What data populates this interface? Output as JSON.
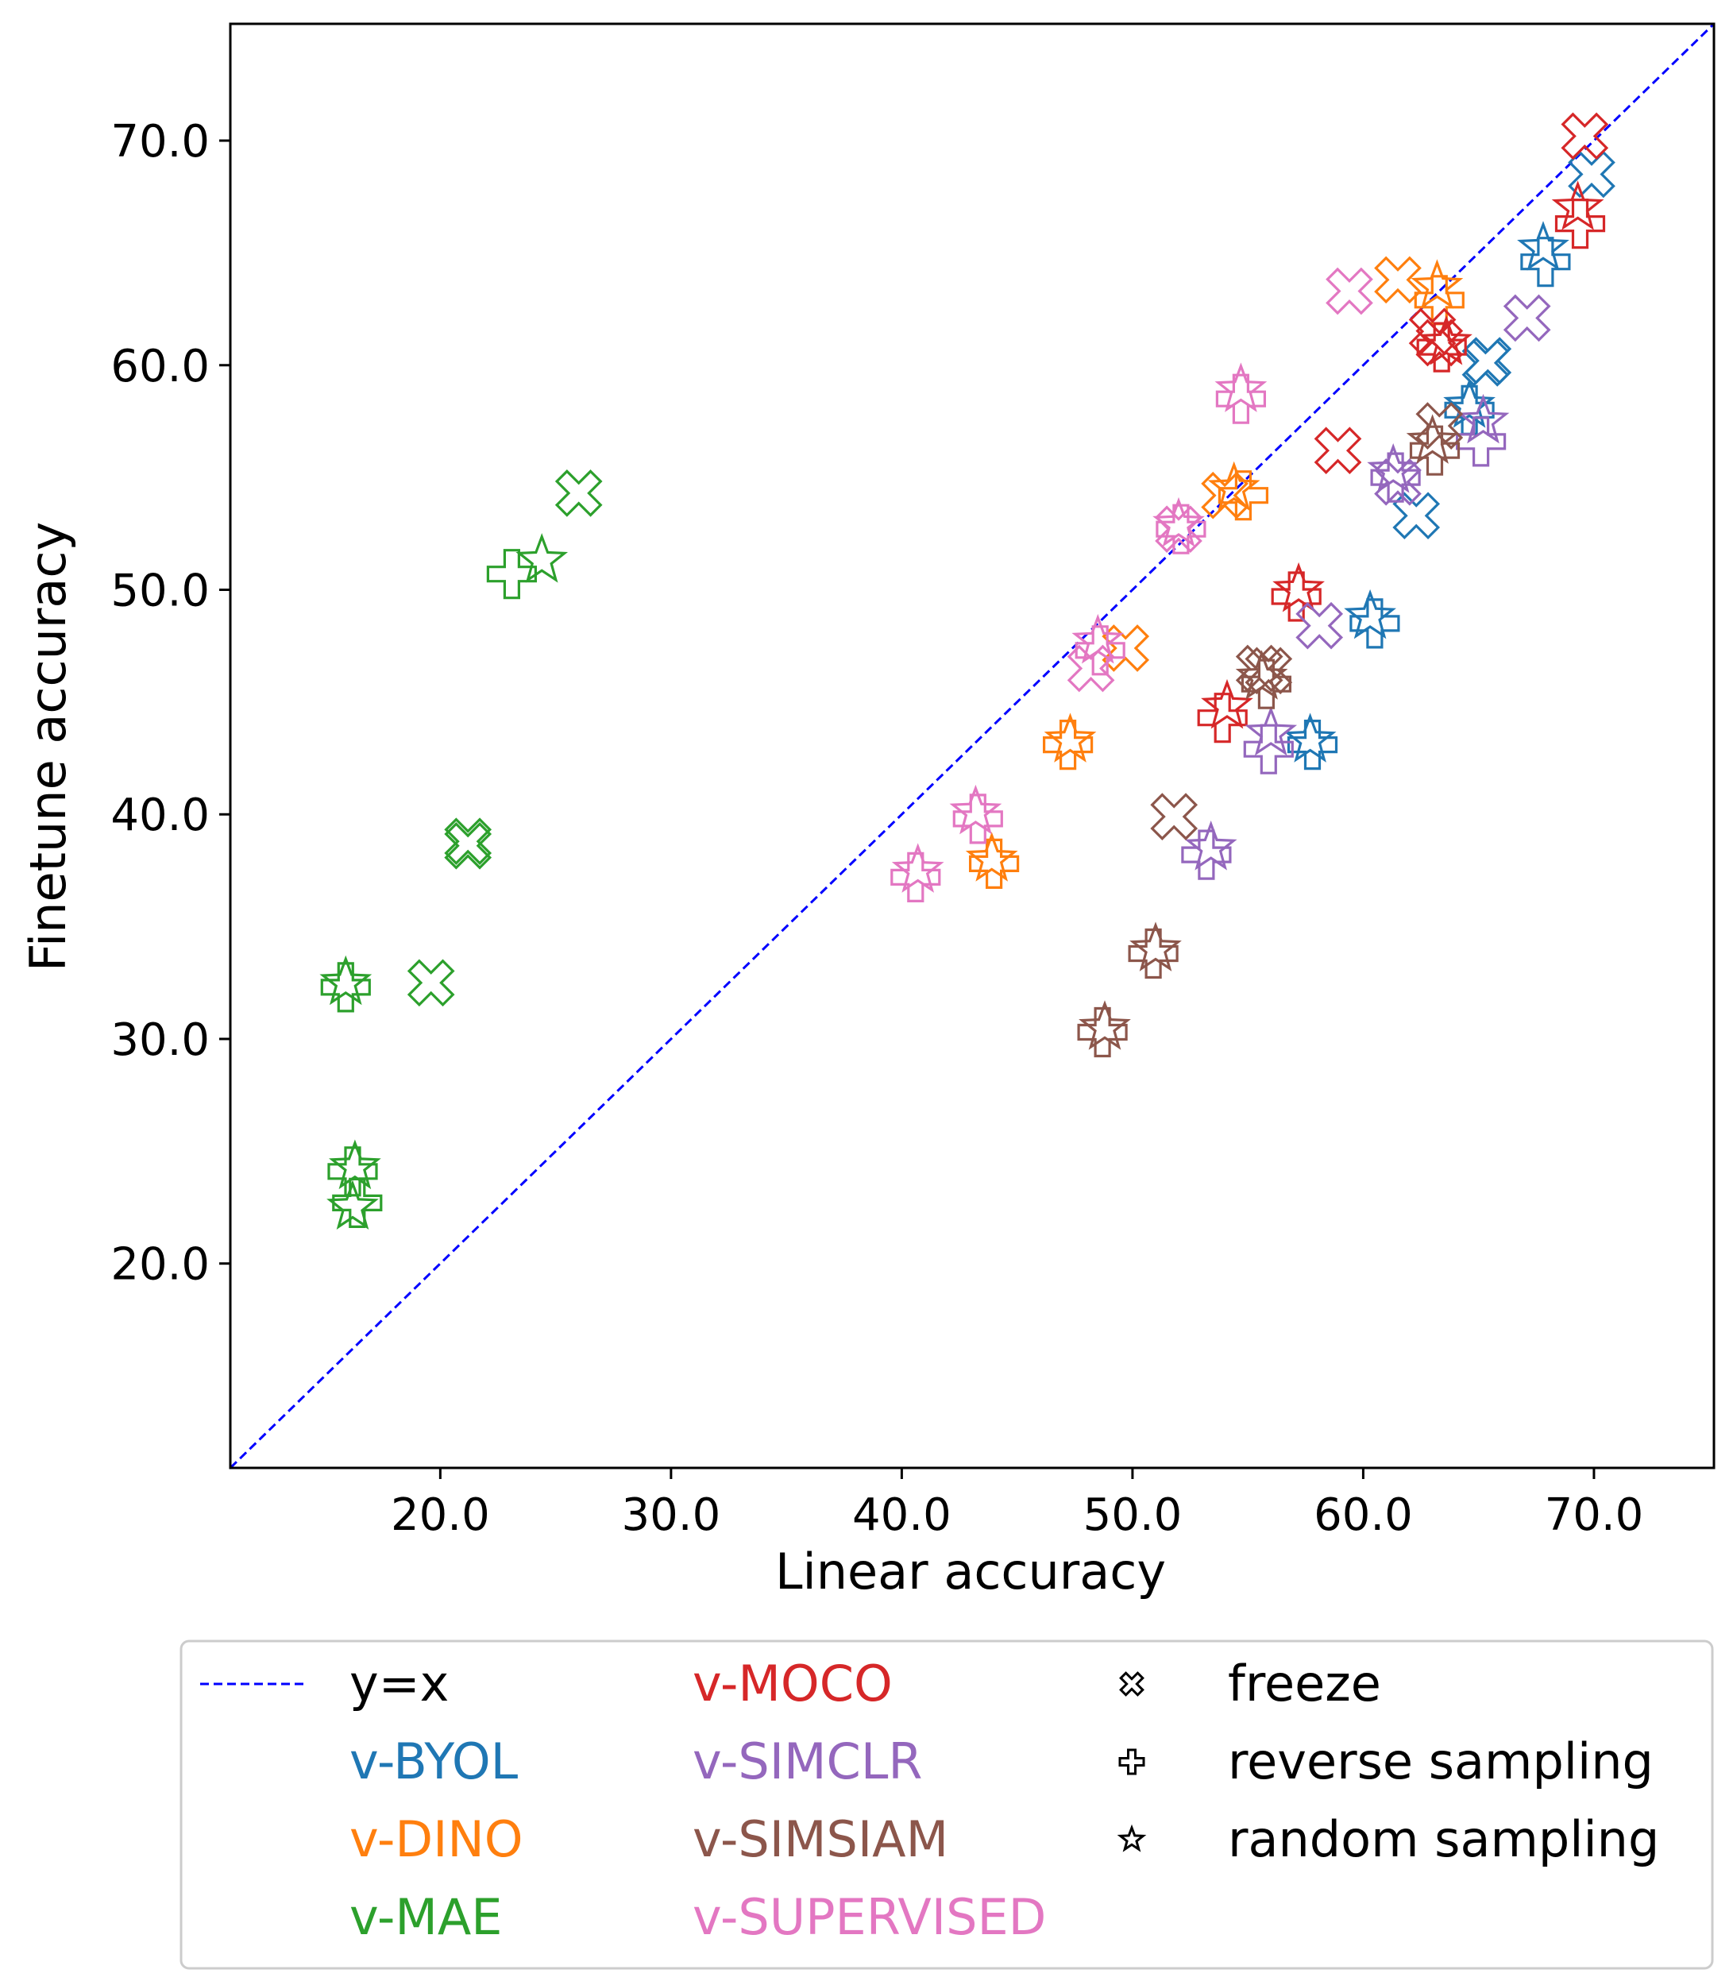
{
  "chart_data": {
    "type": "scatter",
    "title": "",
    "xlabel": "Linear accuracy",
    "ylabel": "Finetune accuracy",
    "xlim": [
      10.9,
      75.2
    ],
    "ylim": [
      10.9,
      75.2
    ],
    "xticks": [
      "20.0",
      "30.0",
      "40.0",
      "50.0",
      "60.0",
      "70.0"
    ],
    "yticks": [
      "20.0",
      "30.0",
      "40.0",
      "50.0",
      "60.0",
      "70.0"
    ],
    "xtick_values": [
      20,
      30,
      40,
      50,
      60,
      70
    ],
    "ytick_values": [
      20,
      30,
      40,
      50,
      60,
      70
    ],
    "grid": false,
    "legend_position": "bottom",
    "reference_line": {
      "label": "y=x",
      "color": "#0000ff",
      "style": "dashed"
    },
    "markers": [
      {
        "key": "freeze",
        "label": "freeze",
        "shape": "x"
      },
      {
        "key": "reverse",
        "label": "reverse sampling",
        "shape": "plus"
      },
      {
        "key": "random",
        "label": "random sampling",
        "shape": "star"
      }
    ],
    "series": [
      {
        "name": "v-BYOL",
        "color": "#1f77b4",
        "points": [
          {
            "x": 69.9,
            "y": 68.5,
            "m": "freeze"
          },
          {
            "x": 65.4,
            "y": 60.2,
            "m": "freeze"
          },
          {
            "x": 65.3,
            "y": 60.1,
            "m": "freeze"
          },
          {
            "x": 62.3,
            "y": 53.3,
            "m": "freeze"
          },
          {
            "x": 67.9,
            "y": 64.6,
            "m": "reverse"
          },
          {
            "x": 64.6,
            "y": 58.0,
            "m": "reverse"
          },
          {
            "x": 60.5,
            "y": 48.5,
            "m": "reverse"
          },
          {
            "x": 57.8,
            "y": 43.1,
            "m": "reverse"
          },
          {
            "x": 67.8,
            "y": 65.2,
            "m": "random"
          },
          {
            "x": 64.6,
            "y": 58.2,
            "m": "random"
          },
          {
            "x": 60.3,
            "y": 48.8,
            "m": "random"
          },
          {
            "x": 57.7,
            "y": 43.3,
            "m": "random"
          }
        ]
      },
      {
        "name": "v-DINO",
        "color": "#ff7f0e",
        "points": [
          {
            "x": 61.5,
            "y": 63.8,
            "m": "freeze"
          },
          {
            "x": 54.0,
            "y": 54.2,
            "m": "freeze"
          },
          {
            "x": 49.7,
            "y": 47.4,
            "m": "freeze"
          },
          {
            "x": 63.3,
            "y": 62.9,
            "m": "reverse"
          },
          {
            "x": 54.8,
            "y": 54.2,
            "m": "reverse"
          },
          {
            "x": 47.2,
            "y": 43.1,
            "m": "reverse"
          },
          {
            "x": 44.0,
            "y": 37.8,
            "m": "reverse"
          },
          {
            "x": 63.2,
            "y": 63.5,
            "m": "random"
          },
          {
            "x": 54.4,
            "y": 54.5,
            "m": "random"
          },
          {
            "x": 47.3,
            "y": 43.3,
            "m": "random"
          },
          {
            "x": 43.9,
            "y": 38.0,
            "m": "random"
          }
        ]
      },
      {
        "name": "v-MAE",
        "color": "#2ca02c",
        "points": [
          {
            "x": 26.0,
            "y": 54.3,
            "m": "freeze"
          },
          {
            "x": 21.2,
            "y": 38.8,
            "m": "freeze"
          },
          {
            "x": 21.2,
            "y": 38.6,
            "m": "freeze"
          },
          {
            "x": 19.6,
            "y": 32.5,
            "m": "freeze"
          },
          {
            "x": 23.1,
            "y": 50.7,
            "m": "reverse"
          },
          {
            "x": 15.9,
            "y": 32.3,
            "m": "reverse"
          },
          {
            "x": 16.2,
            "y": 24.1,
            "m": "reverse"
          },
          {
            "x": 16.4,
            "y": 22.7,
            "m": "reverse"
          },
          {
            "x": 24.4,
            "y": 51.3,
            "m": "random"
          },
          {
            "x": 15.9,
            "y": 32.5,
            "m": "random"
          },
          {
            "x": 16.3,
            "y": 24.3,
            "m": "random"
          },
          {
            "x": 16.2,
            "y": 22.5,
            "m": "random"
          }
        ]
      },
      {
        "name": "v-MOCO",
        "color": "#d62728",
        "points": [
          {
            "x": 69.6,
            "y": 70.2,
            "m": "freeze"
          },
          {
            "x": 63.0,
            "y": 61.5,
            "m": "freeze"
          },
          {
            "x": 63.3,
            "y": 61.0,
            "m": "freeze"
          },
          {
            "x": 58.9,
            "y": 56.2,
            "m": "freeze"
          },
          {
            "x": 69.4,
            "y": 66.3,
            "m": "reverse"
          },
          {
            "x": 63.4,
            "y": 60.8,
            "m": "reverse"
          },
          {
            "x": 57.1,
            "y": 49.7,
            "m": "reverse"
          },
          {
            "x": 53.9,
            "y": 44.3,
            "m": "reverse"
          },
          {
            "x": 69.3,
            "y": 67.0,
            "m": "random"
          },
          {
            "x": 63.6,
            "y": 61.0,
            "m": "random"
          },
          {
            "x": 57.2,
            "y": 50.0,
            "m": "random"
          },
          {
            "x": 54.1,
            "y": 44.8,
            "m": "random"
          }
        ]
      },
      {
        "name": "v-SIMCLR",
        "color": "#9467bd",
        "points": [
          {
            "x": 67.1,
            "y": 62.1,
            "m": "freeze"
          },
          {
            "x": 61.5,
            "y": 54.8,
            "m": "freeze"
          },
          {
            "x": 58.1,
            "y": 48.4,
            "m": "freeze"
          },
          {
            "x": 65.1,
            "y": 56.6,
            "m": "reverse"
          },
          {
            "x": 61.4,
            "y": 55.0,
            "m": "reverse"
          },
          {
            "x": 55.9,
            "y": 42.9,
            "m": "reverse"
          },
          {
            "x": 53.2,
            "y": 38.2,
            "m": "reverse"
          },
          {
            "x": 65.2,
            "y": 57.5,
            "m": "random"
          },
          {
            "x": 61.3,
            "y": 55.3,
            "m": "random"
          },
          {
            "x": 56.0,
            "y": 43.6,
            "m": "random"
          },
          {
            "x": 53.4,
            "y": 38.5,
            "m": "random"
          }
        ]
      },
      {
        "name": "v-SIMSIAM",
        "color": "#8c564b",
        "points": [
          {
            "x": 63.3,
            "y": 57.3,
            "m": "freeze"
          },
          {
            "x": 55.5,
            "y": 46.5,
            "m": "freeze"
          },
          {
            "x": 55.9,
            "y": 46.4,
            "m": "freeze"
          },
          {
            "x": 51.8,
            "y": 39.9,
            "m": "freeze"
          },
          {
            "x": 63.1,
            "y": 56.2,
            "m": "reverse"
          },
          {
            "x": 55.8,
            "y": 45.8,
            "m": "reverse"
          },
          {
            "x": 50.9,
            "y": 33.8,
            "m": "reverse"
          },
          {
            "x": 48.7,
            "y": 30.3,
            "m": "reverse"
          },
          {
            "x": 63.0,
            "y": 56.6,
            "m": "random"
          },
          {
            "x": 55.6,
            "y": 46.1,
            "m": "random"
          },
          {
            "x": 51.0,
            "y": 34.0,
            "m": "random"
          },
          {
            "x": 48.8,
            "y": 30.5,
            "m": "random"
          }
        ]
      },
      {
        "name": "v-SUPERVISED",
        "color": "#e377c2",
        "points": [
          {
            "x": 59.4,
            "y": 63.3,
            "m": "freeze"
          },
          {
            "x": 52.0,
            "y": 52.7,
            "m": "freeze"
          },
          {
            "x": 48.2,
            "y": 46.5,
            "m": "freeze"
          },
          {
            "x": 54.7,
            "y": 58.5,
            "m": "reverse"
          },
          {
            "x": 52.1,
            "y": 52.7,
            "m": "reverse"
          },
          {
            "x": 48.6,
            "y": 47.3,
            "m": "reverse"
          },
          {
            "x": 43.3,
            "y": 39.8,
            "m": "reverse"
          },
          {
            "x": 40.6,
            "y": 37.2,
            "m": "reverse"
          },
          {
            "x": 54.7,
            "y": 58.9,
            "m": "random"
          },
          {
            "x": 52.0,
            "y": 52.9,
            "m": "random"
          },
          {
            "x": 48.5,
            "y": 47.7,
            "m": "random"
          },
          {
            "x": 43.2,
            "y": 40.1,
            "m": "random"
          },
          {
            "x": 40.7,
            "y": 37.5,
            "m": "random"
          }
        ]
      }
    ]
  }
}
